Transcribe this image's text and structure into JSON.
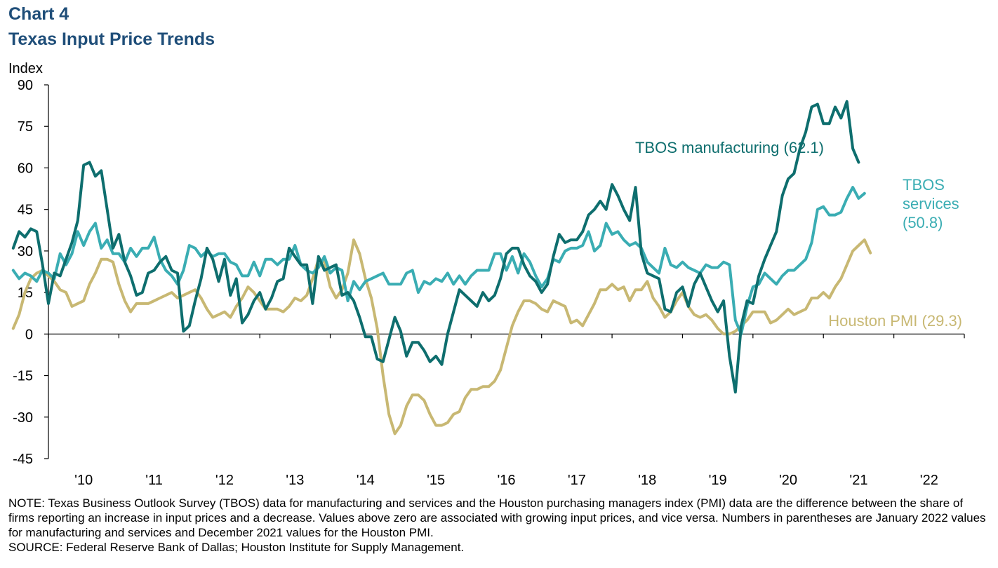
{
  "header": {
    "chart_number": "Chart 4",
    "title": "Texas Input Price Trends"
  },
  "colors": {
    "title": "#1F4E79",
    "manufacturing": "#0E6E6E",
    "services": "#3AADB3",
    "houston_pmi": "#C8B873"
  },
  "chart_data": {
    "type": "line",
    "ylabel": "Index",
    "ylim": [
      -45,
      90
    ],
    "yticks": [
      90,
      75,
      60,
      45,
      30,
      15,
      0,
      -15,
      -30,
      -45
    ],
    "xticks": [
      "'10",
      "'11",
      "'12",
      "'13",
      "'14",
      "'15",
      "'16",
      "'17",
      "'18",
      "'19",
      "'20",
      "'21",
      "'22"
    ],
    "x_start": "2009-07",
    "frequency": "monthly",
    "grid": false,
    "series": [
      {
        "name": "TBOS manufacturing",
        "label": "TBOS manufacturing (62.1)",
        "label_lines": [
          "TBOS manufacturing (62.1)"
        ],
        "color_key": "manufacturing",
        "values": [
          31,
          37,
          35,
          38,
          37,
          25,
          11,
          22,
          21,
          27,
          33,
          41,
          61,
          62,
          57,
          59,
          45,
          31,
          36,
          26,
          21,
          14,
          15,
          22,
          23,
          26,
          28,
          23,
          22,
          1,
          3,
          12,
          20,
          31,
          27,
          19,
          27,
          14,
          20,
          4,
          7,
          12,
          15,
          9,
          13,
          19,
          20,
          31,
          28,
          25,
          25,
          11,
          28,
          23,
          24,
          25,
          14,
          15,
          12,
          6,
          -1,
          -1,
          -9,
          -10,
          -2,
          6,
          1,
          -8,
          -3,
          -3,
          -6,
          -10,
          -8,
          -11,
          0,
          8,
          16,
          14,
          12,
          10,
          15,
          12,
          14,
          20,
          29,
          31,
          31,
          25,
          21,
          19,
          15,
          18,
          28,
          36,
          33,
          34,
          34,
          37,
          43,
          45,
          48,
          45,
          54,
          50,
          45,
          41,
          53,
          29,
          22,
          21,
          20,
          9,
          8,
          15,
          17,
          10,
          18,
          22,
          17,
          12,
          8,
          12,
          -8,
          -21,
          3,
          12,
          11,
          21,
          27,
          32,
          37,
          50,
          56,
          58,
          67,
          73,
          82,
          83,
          76,
          76,
          82,
          78,
          84,
          67,
          62
        ],
        "end_value": 62.1
      },
      {
        "name": "TBOS services",
        "label": "TBOS services (50.8)",
        "label_lines": [
          "TBOS",
          "services",
          "(50.8)"
        ],
        "color_key": "services",
        "values": [
          23,
          20,
          22,
          21,
          19,
          23,
          22,
          20,
          29,
          25,
          29,
          37,
          32,
          37,
          40,
          31,
          34,
          29,
          29,
          26,
          31,
          28,
          31,
          31,
          35,
          27,
          23,
          21,
          18,
          23,
          32,
          31,
          28,
          30,
          28,
          29,
          29,
          26,
          25,
          21,
          21,
          26,
          21,
          27,
          27,
          25,
          27,
          27,
          32,
          25,
          23,
          22,
          24,
          28,
          22,
          24,
          23,
          12,
          19,
          16,
          19,
          20,
          21,
          22,
          18,
          18,
          18,
          22,
          23,
          15,
          19,
          18,
          20,
          19,
          22,
          18,
          21,
          18,
          21,
          23,
          23,
          23,
          29,
          29,
          23,
          28,
          22,
          29,
          26,
          21,
          17,
          20,
          27,
          26,
          30,
          31,
          31,
          32,
          37,
          30,
          32,
          40,
          36,
          37,
          34,
          32,
          33,
          31,
          26,
          24,
          22,
          31,
          25,
          24,
          26,
          24,
          23,
          22,
          25,
          24,
          24,
          26,
          25,
          5,
          0,
          10,
          17,
          18,
          22,
          20,
          18,
          21,
          23,
          23,
          25,
          27,
          33,
          45,
          46,
          43,
          43,
          44,
          49,
          53,
          49,
          50.8
        ],
        "end_value": 50.8
      },
      {
        "name": "Houston PMI",
        "label": "Houston PMI (29.3)",
        "label_lines": [
          "Houston PMI (29.3)"
        ],
        "color_key": "houston_pmi",
        "values": [
          2,
          7,
          15,
          20,
          22,
          23,
          21,
          19,
          16,
          15,
          10,
          11,
          12,
          18,
          22,
          27,
          27,
          26,
          18,
          12,
          8,
          11,
          11,
          11,
          12,
          13,
          14,
          15,
          13,
          14,
          15,
          16,
          13,
          9,
          6,
          7,
          8,
          6,
          10,
          13,
          17,
          15,
          12,
          9,
          9,
          9,
          8,
          10,
          13,
          12,
          14,
          20,
          27,
          26,
          17,
          13,
          16,
          22,
          34,
          29,
          20,
          13,
          2,
          -15,
          -29,
          -36,
          -33,
          -26,
          -22,
          -22,
          -24,
          -29,
          -33,
          -33,
          -32,
          -29,
          -28,
          -23,
          -20,
          -20,
          -19,
          -19,
          -17,
          -13,
          -5,
          3,
          8,
          12,
          12,
          11,
          9,
          8,
          12,
          11,
          10,
          4,
          5,
          3,
          7,
          11,
          16,
          16,
          18,
          16,
          17,
          12,
          16,
          16,
          19,
          13,
          10,
          6,
          8,
          12,
          15,
          10,
          7,
          6,
          7,
          5,
          2,
          0,
          0,
          1,
          3,
          5,
          8,
          8,
          8,
          4,
          5,
          7,
          9,
          7,
          8,
          9,
          13,
          13,
          15,
          13,
          17,
          20,
          25,
          30,
          32,
          34,
          29.3
        ],
        "end_value": 29.3
      }
    ]
  },
  "footer": {
    "note": "NOTE: Texas Business Outlook Survey (TBOS) data for manufacturing and services and the Houston purchasing managers index (PMI) data are the difference between the share of firms reporting an increase in input prices and a decrease. Values above zero are associated with growing input prices, and vice versa. Numbers in parentheses are January 2022 values for manufacturing and services and December 2021 values for the Houston PMI.",
    "source": "SOURCE: Federal Reserve Bank of Dallas; Houston Institute for Supply Management."
  }
}
